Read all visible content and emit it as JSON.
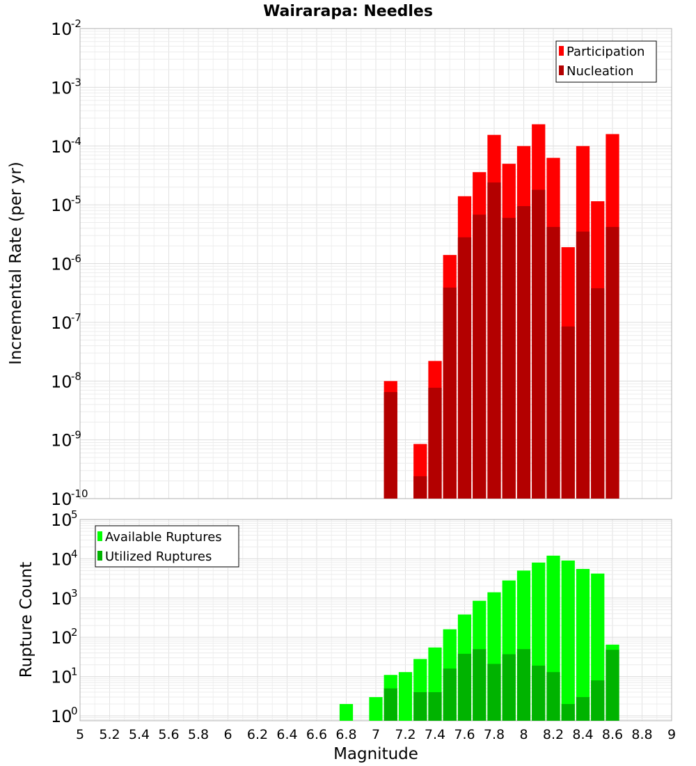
{
  "chart_data": [
    {
      "type": "bar",
      "title": "Wairarapa: Needles",
      "ylabel": "Incremental Rate (per yr)",
      "xlabel": "",
      "yscale": "log",
      "ylim": [
        1e-10,
        0.01
      ],
      "xlim": [
        5,
        9
      ],
      "grid": true,
      "legend_position": "top-right",
      "series": [
        {
          "name": "Participation",
          "color": "#ff0000",
          "x": [
            7.1,
            7.3,
            7.4,
            7.5,
            7.6,
            7.7,
            7.8,
            7.9,
            8.0,
            8.1,
            8.2,
            8.3,
            8.4,
            8.5,
            8.6
          ],
          "values": [
            1e-08,
            8.5e-10,
            2.2e-08,
            1.4e-06,
            1.4e-05,
            3.6e-05,
            0.000155,
            5e-05,
            0.0001,
            0.000235,
            6.3e-05,
            1.9e-06,
            0.0001,
            1.15e-05,
            0.00016
          ]
        },
        {
          "name": "Nucleation",
          "color": "#b30000",
          "x": [
            7.1,
            7.3,
            7.4,
            7.5,
            7.6,
            7.7,
            7.8,
            7.9,
            8.0,
            8.1,
            8.2,
            8.3,
            8.4,
            8.5,
            8.6
          ],
          "values": [
            6.5e-09,
            2.4e-10,
            7.7e-09,
            3.9e-07,
            2.8e-06,
            6.8e-06,
            2.4e-05,
            6e-06,
            9.5e-06,
            1.8e-05,
            4.2e-06,
            8.5e-08,
            3.5e-06,
            3.8e-07,
            4.2e-06
          ]
        }
      ]
    },
    {
      "type": "bar",
      "title": "",
      "ylabel": "Rupture Count",
      "xlabel": "Magnitude",
      "yscale": "log",
      "ylim": [
        0.75,
        100000
      ],
      "xlim": [
        5,
        9
      ],
      "xticks": [
        "5",
        "5.2",
        "5.4",
        "5.6",
        "5.8",
        "6",
        "6.2",
        "6.4",
        "6.6",
        "6.8",
        "7",
        "7.2",
        "7.4",
        "7.6",
        "7.8",
        "8",
        "8.2",
        "8.4",
        "8.6",
        "8.8",
        "9"
      ],
      "grid": true,
      "legend_position": "top-left",
      "series": [
        {
          "name": "Available Ruptures",
          "color": "#00ff00",
          "x": [
            6.8,
            7.0,
            7.1,
            7.2,
            7.3,
            7.4,
            7.5,
            7.6,
            7.7,
            7.8,
            7.9,
            8.0,
            8.1,
            8.2,
            8.3,
            8.4,
            8.5,
            8.6
          ],
          "values": [
            2,
            3,
            11,
            13,
            28,
            55,
            160,
            380,
            850,
            1400,
            2800,
            5000,
            8000,
            12000,
            9000,
            5500,
            4200,
            65
          ]
        },
        {
          "name": "Utilized Ruptures",
          "color": "#00b300",
          "x": [
            7.1,
            7.3,
            7.4,
            7.5,
            7.6,
            7.7,
            7.8,
            7.9,
            8.0,
            8.1,
            8.2,
            8.3,
            8.4,
            8.5,
            8.6
          ],
          "values": [
            5,
            4,
            4,
            16,
            38,
            50,
            21,
            37,
            50,
            19,
            13,
            2,
            3,
            8,
            48
          ]
        }
      ]
    }
  ]
}
